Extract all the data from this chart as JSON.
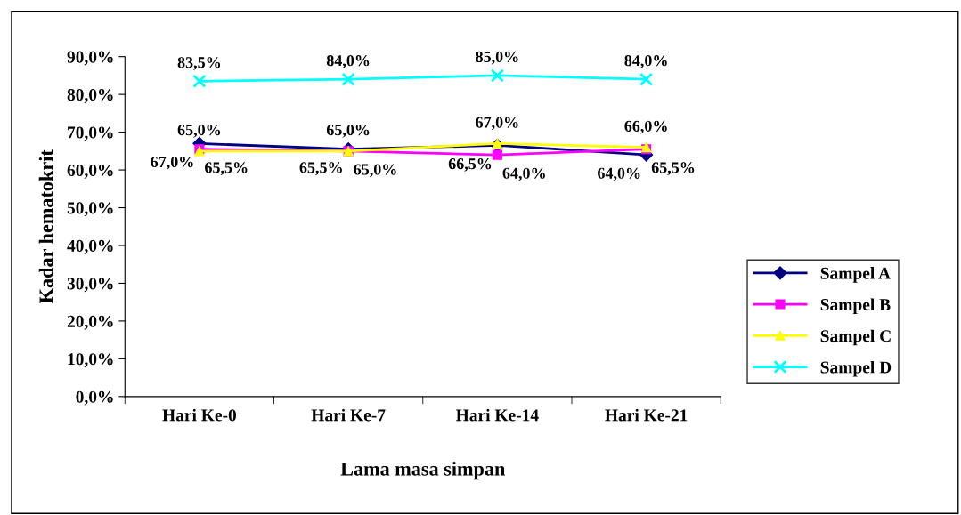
{
  "chart_data": {
    "type": "line",
    "categories": [
      "Hari Ke-0",
      "Hari Ke-7",
      "Hari Ke-14",
      "Hari Ke-21"
    ],
    "xlabel": "Lama masa simpan",
    "ylabel": "Kadar hematokrit",
    "ylim": [
      0,
      90
    ],
    "yticks": [
      {
        "value": 0,
        "label": "0,0%"
      },
      {
        "value": 10,
        "label": "10,0%"
      },
      {
        "value": 20,
        "label": "20,0%"
      },
      {
        "value": 30,
        "label": "30,0%"
      },
      {
        "value": 40,
        "label": "40,0%"
      },
      {
        "value": 50,
        "label": "50,0%"
      },
      {
        "value": 60,
        "label": "60,0%"
      },
      {
        "value": 70,
        "label": "70,0%"
      },
      {
        "value": 80,
        "label": "80,0%"
      },
      {
        "value": 90,
        "label": "90,0%"
      }
    ],
    "grid": false,
    "legend": "right",
    "series": [
      {
        "name": "Sampel A",
        "color": "#000080",
        "marker": "diamond",
        "values": [
          67.0,
          65.5,
          66.5,
          64.0
        ],
        "value_labels": [
          "67,0%",
          "65,5%",
          "66,5%",
          "64,0%"
        ]
      },
      {
        "name": "Sampel B",
        "color": "#ff00ff",
        "marker": "square",
        "values": [
          65.5,
          65.0,
          64.0,
          65.5
        ],
        "value_labels": [
          "65,5%",
          "65,0%",
          "64,0%",
          "65,5%"
        ]
      },
      {
        "name": "Sampel C",
        "color": "#ffff00",
        "marker": "triangle",
        "values": [
          65.0,
          65.0,
          67.0,
          66.0
        ],
        "value_labels": [
          "65,0%",
          "65,0%",
          "67,0%",
          "66,0%"
        ]
      },
      {
        "name": "Sampel D",
        "color": "#00ffff",
        "marker": "cross",
        "values": [
          83.5,
          84.0,
          85.0,
          84.0
        ],
        "value_labels": [
          "83,5%",
          "84,0%",
          "85,0%",
          "84,0%"
        ]
      }
    ]
  }
}
